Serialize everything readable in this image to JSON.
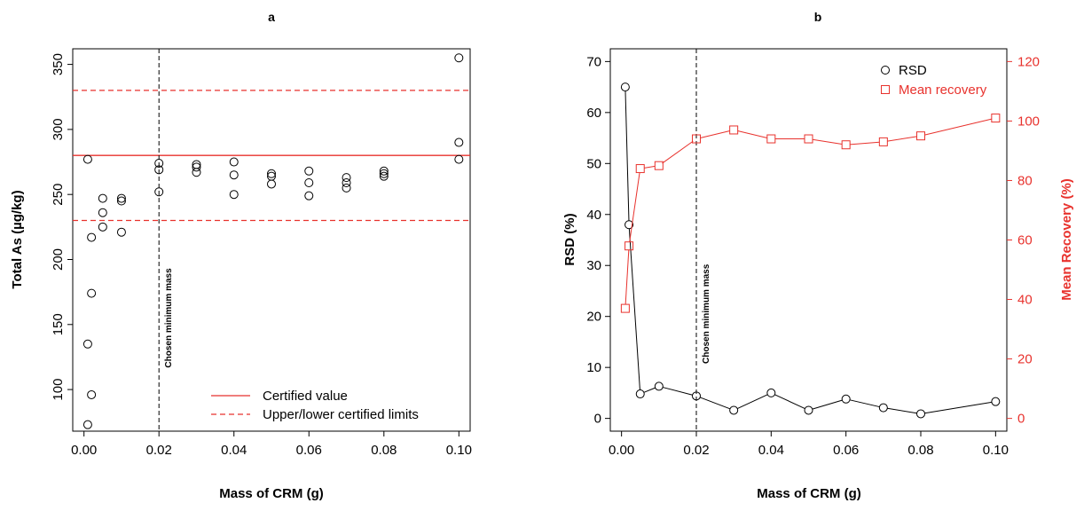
{
  "colors": {
    "black": "#000000",
    "red": "#e8322d"
  },
  "chart_data": [
    {
      "panel": "a",
      "type": "scatter",
      "title": "a",
      "xlabel": "Mass of CRM (g)",
      "ylabel": "Total As (µg/kg)",
      "xlim": [
        -0.003,
        0.103
      ],
      "ylim": [
        68,
        362
      ],
      "xticks": [
        0.0,
        0.02,
        0.04,
        0.06,
        0.08,
        0.1
      ],
      "xtick_labels": [
        "0.00",
        "0.02",
        "0.04",
        "0.06",
        "0.08",
        "0.10"
      ],
      "yticks": [
        100,
        150,
        200,
        250,
        300,
        350
      ],
      "ytick_labels": [
        "100",
        "150",
        "200",
        "250",
        "300",
        "350"
      ],
      "points": [
        {
          "x": 0.001,
          "y": 277
        },
        {
          "x": 0.001,
          "y": 135
        },
        {
          "x": 0.001,
          "y": 73
        },
        {
          "x": 0.002,
          "y": 217
        },
        {
          "x": 0.002,
          "y": 174
        },
        {
          "x": 0.002,
          "y": 96
        },
        {
          "x": 0.005,
          "y": 247
        },
        {
          "x": 0.005,
          "y": 236
        },
        {
          "x": 0.005,
          "y": 225
        },
        {
          "x": 0.01,
          "y": 247
        },
        {
          "x": 0.01,
          "y": 245
        },
        {
          "x": 0.01,
          "y": 221
        },
        {
          "x": 0.02,
          "y": 274
        },
        {
          "x": 0.02,
          "y": 269
        },
        {
          "x": 0.02,
          "y": 252
        },
        {
          "x": 0.03,
          "y": 273
        },
        {
          "x": 0.03,
          "y": 271
        },
        {
          "x": 0.03,
          "y": 267
        },
        {
          "x": 0.04,
          "y": 275
        },
        {
          "x": 0.04,
          "y": 265
        },
        {
          "x": 0.04,
          "y": 250
        },
        {
          "x": 0.05,
          "y": 266
        },
        {
          "x": 0.05,
          "y": 264
        },
        {
          "x": 0.05,
          "y": 258
        },
        {
          "x": 0.06,
          "y": 268
        },
        {
          "x": 0.06,
          "y": 259
        },
        {
          "x": 0.06,
          "y": 249
        },
        {
          "x": 0.07,
          "y": 263
        },
        {
          "x": 0.07,
          "y": 259
        },
        {
          "x": 0.07,
          "y": 255
        },
        {
          "x": 0.08,
          "y": 268
        },
        {
          "x": 0.08,
          "y": 266
        },
        {
          "x": 0.08,
          "y": 264
        },
        {
          "x": 0.1,
          "y": 355
        },
        {
          "x": 0.1,
          "y": 290
        },
        {
          "x": 0.1,
          "y": 277
        }
      ],
      "certified_value": 280,
      "certified_limits": [
        230,
        330
      ],
      "vline": {
        "x": 0.02,
        "label": "Chosen minimum mass"
      },
      "legend": {
        "position": "bottom-right",
        "entries": [
          {
            "label": "Certified value",
            "style": "solid",
            "color": "#e8322d"
          },
          {
            "label": "Upper/lower certified limits",
            "style": "dashed",
            "color": "#e8322d"
          }
        ]
      }
    },
    {
      "panel": "b",
      "type": "line",
      "title": "b",
      "xlabel": "Mass of CRM (g)",
      "ylabel": "RSD (%)",
      "ylabel_right": "Mean Recovery (%)",
      "xlim": [
        -0.003,
        0.103
      ],
      "xticks": [
        0.0,
        0.02,
        0.04,
        0.06,
        0.08,
        0.1
      ],
      "xtick_labels": [
        "0.00",
        "0.02",
        "0.04",
        "0.06",
        "0.08",
        "0.10"
      ],
      "ylim": [
        -2.5,
        72.5
      ],
      "yticks": [
        0,
        10,
        20,
        30,
        40,
        50,
        60,
        70
      ],
      "ytick_labels": [
        "0",
        "10",
        "20",
        "30",
        "40",
        "50",
        "60",
        "70"
      ],
      "ylim_right": [
        -4.2857,
        124.2857
      ],
      "yticks_right": [
        0,
        20,
        40,
        60,
        80,
        100,
        120
      ],
      "ytick_labels_right": [
        "0",
        "20",
        "40",
        "60",
        "80",
        "100",
        "120"
      ],
      "x": [
        0.001,
        0.002,
        0.005,
        0.01,
        0.02,
        0.03,
        0.04,
        0.05,
        0.06,
        0.07,
        0.08,
        0.1
      ],
      "series": [
        {
          "name": "RSD",
          "axis": "left",
          "marker": "circle",
          "color": "#000000",
          "values": [
            65,
            38,
            4.8,
            6.3,
            4.4,
            1.6,
            5.0,
            1.6,
            3.8,
            2.1,
            0.9,
            3.3
          ]
        },
        {
          "name": "Mean recovery",
          "axis": "right",
          "marker": "square",
          "color": "#e8322d",
          "values": [
            37,
            58,
            84,
            85,
            94,
            97,
            94,
            94,
            92,
            93,
            95,
            101
          ]
        }
      ],
      "vline": {
        "x": 0.02,
        "label": "Chosen minimum mass"
      },
      "legend": {
        "position": "top-right",
        "entries": [
          {
            "label": "RSD",
            "marker": "circle",
            "color": "#000000"
          },
          {
            "label": "Mean recovery",
            "marker": "square",
            "color": "#e8322d"
          }
        ]
      }
    }
  ]
}
